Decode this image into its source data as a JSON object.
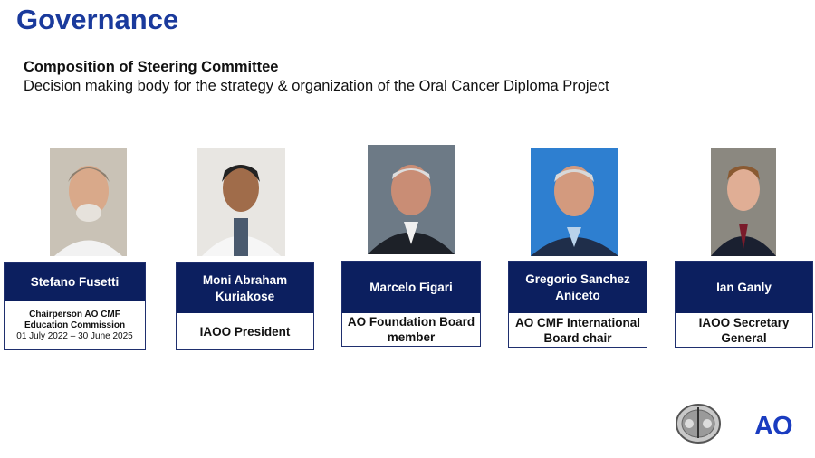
{
  "slide": {
    "title": "Governance",
    "subtitle": "Composition of Steering Committee",
    "description": "Decision making body for the strategy & organization of the Oral Cancer Diploma Project"
  },
  "members": [
    {
      "name": "Stefano Fusetti",
      "role": "Chairperson AO CMF\nEducation Commission",
      "term": "01 July 2022 – 30 June 2025"
    },
    {
      "name": "Moni Abraham\nKuriakose",
      "role": "IAOO President"
    },
    {
      "name": "Marcelo Figari",
      "role": "AO Foundation Board\nmember"
    },
    {
      "name": "Gregorio Sanchez\nAniceto",
      "role": "AO CMF International\nBoard chair"
    },
    {
      "name": "Ian Ganly",
      "role": "IAOO Secretary\nGeneral"
    }
  ],
  "logos": {
    "ao": "AO",
    "seal": "IAOO seal"
  },
  "colors": {
    "title": "#1a3a9c",
    "card_header": "#0c1f5f",
    "ao_logo": "#1a3cc0"
  }
}
